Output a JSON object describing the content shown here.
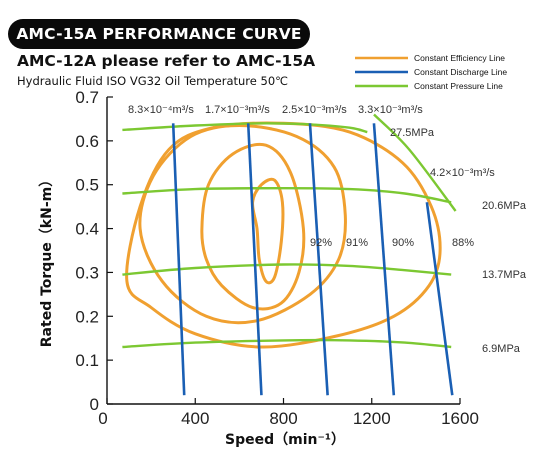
{
  "header": {
    "badge": "AMC-15A PERFORMANCE CURVE",
    "subtitle": "AMC-12A please refer to AMC-15A",
    "condition": "Hydraulic Fluid ISO VG32 Oil Temperature 50℃"
  },
  "colors": {
    "efficiency": "#f0a030",
    "discharge": "#1a5fb4",
    "pressure": "#7cc832"
  },
  "chart_data": {
    "type": "line",
    "xlabel": "Speed（min⁻¹）",
    "ylabel": "Rated Torque（kN-m）",
    "xlim": [
      0,
      1600
    ],
    "ylim": [
      0,
      0.7
    ],
    "x_ticks": [
      "0",
      "400",
      "800",
      "1200",
      "1600"
    ],
    "y_ticks": [
      "0",
      "0.1",
      "0.2",
      "0.3",
      "0.4",
      "0.5",
      "0.6",
      "0.7"
    ],
    "legend": [
      {
        "label": "Constant Efficiency Line",
        "color": "#f0a030"
      },
      {
        "label": "Constant Discharge Line",
        "color": "#1a5fb4"
      },
      {
        "label": "Constant Pressure Line",
        "color": "#7cc832"
      }
    ],
    "efficiency_lines": [
      {
        "label": "92%",
        "points": [
          [
            680,
            0.4
          ],
          [
            660,
            0.46
          ],
          [
            700,
            0.5
          ],
          [
            760,
            0.51
          ],
          [
            795,
            0.46
          ],
          [
            790,
            0.37
          ],
          [
            760,
            0.29
          ],
          [
            720,
            0.28
          ],
          [
            690,
            0.33
          ],
          [
            680,
            0.4
          ]
        ]
      },
      {
        "label": "91%",
        "points": [
          [
            430,
            0.4
          ],
          [
            460,
            0.5
          ],
          [
            570,
            0.57
          ],
          [
            720,
            0.59
          ],
          [
            830,
            0.53
          ],
          [
            890,
            0.4
          ],
          [
            870,
            0.3
          ],
          [
            790,
            0.23
          ],
          [
            660,
            0.22
          ],
          [
            520,
            0.27
          ],
          [
            450,
            0.33
          ],
          [
            430,
            0.4
          ]
        ]
      },
      {
        "label": "90%",
        "points": [
          [
            150,
            0.4
          ],
          [
            210,
            0.52
          ],
          [
            380,
            0.61
          ],
          [
            600,
            0.635
          ],
          [
            860,
            0.61
          ],
          [
            1030,
            0.54
          ],
          [
            1080,
            0.43
          ],
          [
            1050,
            0.33
          ],
          [
            920,
            0.25
          ],
          [
            680,
            0.19
          ],
          [
            450,
            0.2
          ],
          [
            250,
            0.28
          ],
          [
            150,
            0.4
          ]
        ]
      },
      {
        "label": "88%",
        "points": [
          [
            90,
            0.28
          ],
          [
            150,
            0.45
          ],
          [
            280,
            0.58
          ],
          [
            480,
            0.63
          ],
          [
            800,
            0.64
          ],
          [
            1100,
            0.62
          ],
          [
            1340,
            0.55
          ],
          [
            1470,
            0.45
          ],
          [
            1510,
            0.35
          ],
          [
            1460,
            0.27
          ],
          [
            1300,
            0.2
          ],
          [
            1040,
            0.155
          ],
          [
            700,
            0.13
          ],
          [
            400,
            0.16
          ],
          [
            200,
            0.22
          ],
          [
            90,
            0.28
          ]
        ]
      }
    ],
    "discharge_lines": [
      {
        "label": "8.3×10⁻⁴m³/s",
        "points": [
          [
            300,
            0.64
          ],
          [
            350,
            0.02
          ]
        ]
      },
      {
        "label": "1.7×10⁻³m³/s",
        "points": [
          [
            640,
            0.64
          ],
          [
            700,
            0.02
          ]
        ]
      },
      {
        "label": "2.5×10⁻³m³/s",
        "points": [
          [
            920,
            0.64
          ],
          [
            1000,
            0.02
          ]
        ]
      },
      {
        "label": "3.3×10⁻³m³/s",
        "points": [
          [
            1210,
            0.64
          ],
          [
            1300,
            0.02
          ]
        ]
      },
      {
        "label": "4.2×10⁻³m³/s",
        "points": [
          [
            1450,
            0.46
          ],
          [
            1565,
            0.02
          ]
        ]
      }
    ],
    "pressure_lines": [
      {
        "label": "27.5MPa",
        "points": [
          [
            70,
            0.625
          ],
          [
            400,
            0.635
          ],
          [
            700,
            0.64
          ],
          [
            900,
            0.638
          ],
          [
            1100,
            0.63
          ],
          [
            1180,
            0.62
          ]
        ]
      },
      {
        "label": "20.6MPa",
        "points": [
          [
            70,
            0.48
          ],
          [
            400,
            0.49
          ],
          [
            800,
            0.492
          ],
          [
            1100,
            0.49
          ],
          [
            1350,
            0.48
          ],
          [
            1560,
            0.46
          ]
        ]
      },
      {
        "label": "13.7MPa",
        "points": [
          [
            70,
            0.295
          ],
          [
            400,
            0.31
          ],
          [
            800,
            0.318
          ],
          [
            1100,
            0.315
          ],
          [
            1350,
            0.305
          ],
          [
            1560,
            0.295
          ]
        ]
      },
      {
        "label": "6.9MPa",
        "points": [
          [
            70,
            0.13
          ],
          [
            400,
            0.14
          ],
          [
            800,
            0.145
          ],
          [
            1100,
            0.145
          ],
          [
            1350,
            0.14
          ],
          [
            1560,
            0.13
          ]
        ]
      }
    ],
    "power_limit": {
      "points": [
        [
          1210,
          0.66
        ],
        [
          1370,
          0.58
        ],
        [
          1580,
          0.44
        ]
      ]
    }
  }
}
